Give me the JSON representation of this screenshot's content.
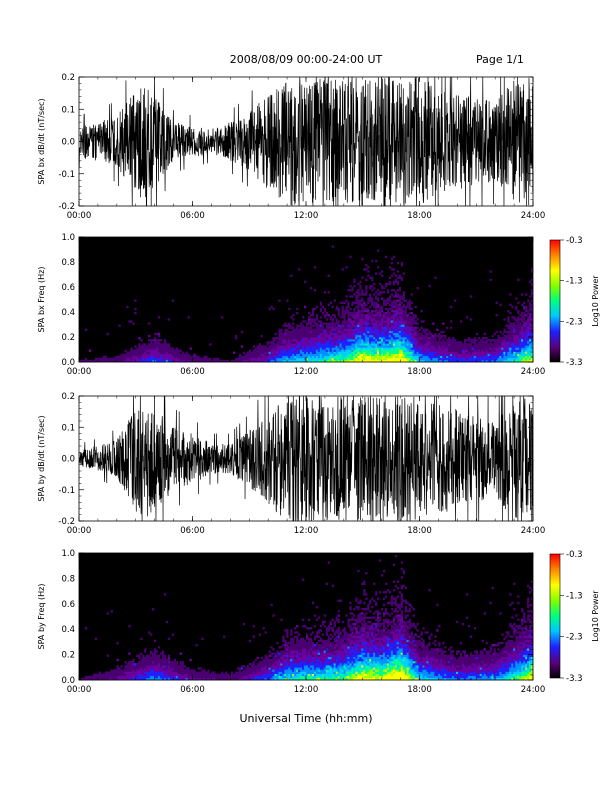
{
  "header": {
    "date_range": "2008/08/09   00:00-24:00 UT",
    "page": "Page 1/1"
  },
  "xlabel": "Universal Time (hh:mm)",
  "chart_data": [
    {
      "type": "line",
      "ylabel": "SPA bx dB/dt (nT/sec)",
      "xlim": [
        0,
        24
      ],
      "ylim": [
        -0.2,
        0.2
      ],
      "xticks": [
        "00:00",
        "06:00",
        "12:00",
        "18:00",
        "24:00"
      ],
      "yticks": [
        "-0.2",
        "-0.1",
        "0.0",
        "0.1",
        "0.2"
      ],
      "envelope_hours": [
        0,
        1,
        2,
        3,
        3.5,
        4,
        5,
        6,
        7,
        8,
        9,
        10,
        11,
        12,
        13,
        14,
        15,
        16,
        17,
        18,
        19,
        20,
        21,
        22,
        23,
        24
      ],
      "envelope_amplitude": [
        0.05,
        0.06,
        0.08,
        0.16,
        0.2,
        0.14,
        0.06,
        0.05,
        0.04,
        0.06,
        0.09,
        0.15,
        0.2,
        0.2,
        0.2,
        0.2,
        0.2,
        0.2,
        0.2,
        0.2,
        0.17,
        0.15,
        0.14,
        0.12,
        0.2,
        0.2
      ]
    },
    {
      "type": "heatmap",
      "ylabel": "SPA bx Freq (Hz)",
      "xlim": [
        0,
        24
      ],
      "ylim": [
        0,
        1
      ],
      "xticks": [
        "00:00",
        "06:00",
        "12:00",
        "18:00",
        "24:00"
      ],
      "yticks": [
        "0.0",
        "0.2",
        "0.4",
        "0.6",
        "0.8",
        "1.0"
      ],
      "colorbar": {
        "label": "Log10 Power",
        "range": [
          -3.3,
          -0.3
        ],
        "ticks": [
          "-0.3",
          "-1.3",
          "-2.3",
          "-3.3"
        ]
      },
      "activity_hours": [
        0,
        2,
        4,
        6,
        8,
        10,
        11,
        12,
        13,
        14,
        15,
        16,
        17,
        18,
        20,
        22,
        24
      ],
      "activity_level": [
        0.1,
        0.15,
        0.35,
        0.15,
        0.1,
        0.3,
        0.45,
        0.5,
        0.55,
        0.6,
        0.75,
        0.7,
        0.8,
        0.45,
        0.3,
        0.35,
        0.7
      ]
    },
    {
      "type": "line",
      "ylabel": "SPA by dB/dt (nT/sec)",
      "xlim": [
        0,
        24
      ],
      "ylim": [
        -0.2,
        0.2
      ],
      "xticks": [
        "00:00",
        "06:00",
        "12:00",
        "18:00",
        "24:00"
      ],
      "yticks": [
        "-0.2",
        "-0.1",
        "0.0",
        "0.1",
        "0.2"
      ],
      "envelope_hours": [
        0,
        1,
        2,
        3,
        3.5,
        4,
        5,
        6,
        7,
        8,
        9,
        10,
        11,
        12,
        13,
        14,
        15,
        16,
        17,
        18,
        19,
        20,
        21,
        22,
        23,
        24
      ],
      "envelope_amplitude": [
        0.03,
        0.04,
        0.06,
        0.17,
        0.2,
        0.17,
        0.1,
        0.08,
        0.05,
        0.05,
        0.09,
        0.15,
        0.2,
        0.2,
        0.2,
        0.2,
        0.2,
        0.2,
        0.2,
        0.2,
        0.18,
        0.16,
        0.14,
        0.12,
        0.2,
        0.2
      ]
    },
    {
      "type": "heatmap",
      "ylabel": "SPA by Freq (Hz)",
      "xlim": [
        0,
        24
      ],
      "ylim": [
        0,
        1
      ],
      "xticks": [
        "00:00",
        "06:00",
        "12:00",
        "18:00",
        "24:00"
      ],
      "yticks": [
        "0.0",
        "0.2",
        "0.4",
        "0.6",
        "0.8",
        "1.0"
      ],
      "colorbar": {
        "label": "Log10 Power",
        "range": [
          -3.3,
          -0.3
        ],
        "ticks": [
          "-0.3",
          "-1.3",
          "-2.3",
          "-3.3"
        ]
      },
      "activity_hours": [
        0,
        2,
        4,
        6,
        8,
        10,
        11,
        12,
        13,
        14,
        15,
        16,
        17,
        18,
        20,
        22,
        24
      ],
      "activity_level": [
        0.1,
        0.2,
        0.4,
        0.2,
        0.15,
        0.35,
        0.5,
        0.55,
        0.55,
        0.6,
        0.75,
        0.7,
        0.85,
        0.5,
        0.35,
        0.4,
        0.75
      ]
    }
  ]
}
